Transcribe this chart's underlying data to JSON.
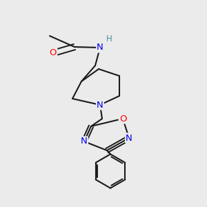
{
  "background_color": "#ebebeb",
  "bond_color": "#1a1a1a",
  "atom_colors": {
    "O": "#ff0000",
    "N": "#0000ee",
    "H": "#4a8f8f",
    "C": "#1a1a1a"
  },
  "figsize": [
    3.0,
    3.0
  ],
  "dpi": 100
}
